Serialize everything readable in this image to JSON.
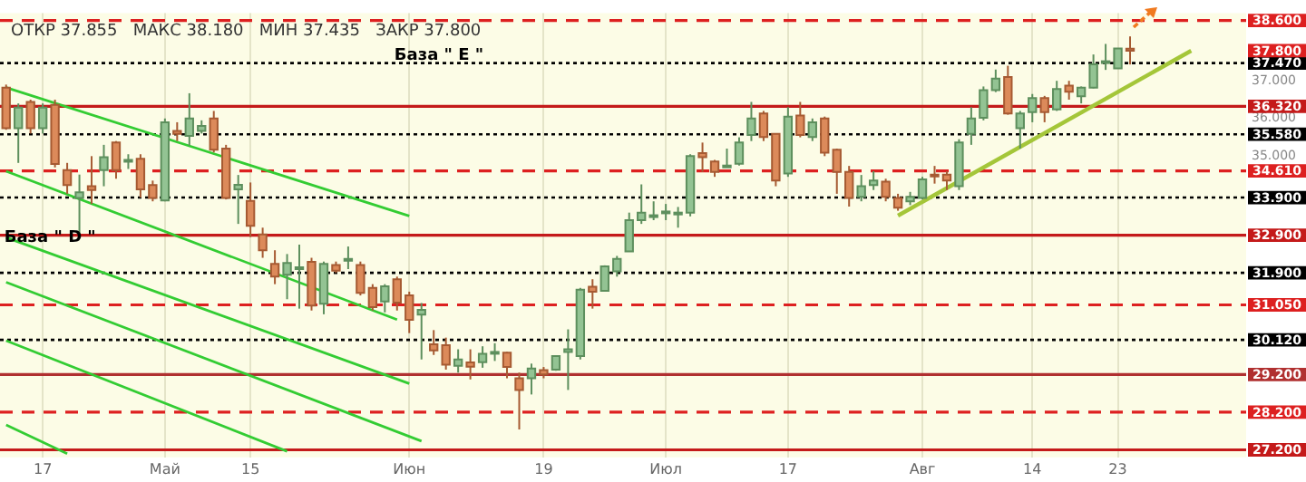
{
  "chart_data": {
    "type": "candlestick",
    "subtitle": "ОТКР 37.855   МАКС 38.180   МИН 37.435   ЗАКР 37.800",
    "categories": [
      null,
      null,
      null,
      "17",
      null,
      null,
      null,
      null,
      null,
      null,
      null,
      null,
      null,
      "Май",
      null,
      null,
      null,
      null,
      null,
      null,
      "15",
      null,
      null,
      null,
      null,
      null,
      null,
      null,
      null,
      null,
      null,
      null,
      null,
      "Июн",
      null,
      null,
      null,
      null,
      null,
      null,
      null,
      null,
      null,
      null,
      "19",
      null,
      null,
      null,
      null,
      null,
      null,
      null,
      null,
      null,
      "Июл",
      null,
      null,
      null,
      null,
      null,
      null,
      null,
      null,
      null,
      "17",
      null,
      null,
      null,
      null,
      null,
      null,
      null,
      null,
      null,
      null,
      "Авг",
      null,
      null,
      null,
      null,
      null,
      null,
      null,
      null,
      "14",
      null,
      null,
      null,
      null,
      null,
      null,
      "23",
      null,
      null,
      null,
      null,
      null,
      null,
      null,
      null,
      null,
      null
    ],
    "ohlc": [
      [
        36.82,
        36.9,
        35.7,
        35.74
      ],
      [
        35.74,
        36.4,
        34.82,
        36.29
      ],
      [
        36.44,
        36.5,
        35.6,
        35.74
      ],
      [
        35.74,
        36.4,
        35.6,
        36.29
      ],
      [
        36.36,
        36.5,
        34.7,
        34.79
      ],
      [
        34.63,
        34.82,
        34.0,
        34.23
      ],
      [
        33.89,
        34.51,
        32.88,
        34.04
      ],
      [
        34.2,
        35.0,
        33.73,
        34.1
      ],
      [
        34.63,
        35.3,
        34.2,
        34.97
      ],
      [
        35.36,
        35.4,
        34.4,
        34.63
      ],
      [
        34.86,
        35.05,
        34.66,
        34.9
      ],
      [
        34.93,
        35.05,
        33.9,
        34.12
      ],
      [
        34.23,
        34.35,
        33.8,
        33.89
      ],
      [
        33.82,
        36.0,
        33.8,
        35.9
      ],
      [
        35.67,
        35.9,
        35.4,
        35.59
      ],
      [
        35.54,
        36.67,
        35.28,
        36.0
      ],
      [
        35.67,
        35.95,
        35.6,
        35.8
      ],
      [
        36.0,
        36.2,
        35.1,
        35.17
      ],
      [
        35.2,
        35.3,
        33.85,
        33.89
      ],
      [
        34.12,
        34.5,
        33.2,
        34.24
      ],
      [
        33.81,
        34.3,
        32.85,
        33.15
      ],
      [
        32.92,
        33.1,
        32.3,
        32.5
      ],
      [
        32.14,
        32.5,
        31.6,
        31.8
      ],
      [
        31.85,
        32.4,
        31.2,
        32.16
      ],
      [
        32.0,
        32.65,
        30.95,
        32.05
      ],
      [
        32.19,
        32.3,
        30.9,
        31.03
      ],
      [
        31.08,
        32.2,
        30.8,
        32.14
      ],
      [
        32.11,
        32.2,
        31.9,
        31.96
      ],
      [
        32.25,
        32.6,
        32.0,
        32.27
      ],
      [
        32.11,
        32.2,
        31.3,
        31.37
      ],
      [
        31.5,
        31.6,
        30.9,
        30.99
      ],
      [
        31.14,
        31.6,
        30.85,
        31.54
      ],
      [
        31.73,
        31.8,
        30.9,
        31.11
      ],
      [
        31.3,
        31.4,
        30.3,
        30.65
      ],
      [
        30.79,
        31.1,
        29.6,
        30.92
      ],
      [
        30.0,
        30.38,
        29.72,
        29.84
      ],
      [
        29.98,
        30.18,
        29.33,
        29.46
      ],
      [
        29.43,
        29.87,
        29.25,
        29.6
      ],
      [
        29.52,
        29.87,
        29.07,
        29.41
      ],
      [
        29.53,
        29.95,
        29.38,
        29.75
      ],
      [
        29.8,
        30.03,
        29.56,
        29.8
      ],
      [
        29.78,
        29.8,
        29.1,
        29.4
      ],
      [
        29.1,
        29.25,
        27.74,
        28.79
      ],
      [
        29.1,
        29.49,
        28.67,
        29.36
      ],
      [
        29.32,
        29.4,
        29.1,
        29.2
      ],
      [
        29.33,
        29.7,
        29.3,
        29.69
      ],
      [
        29.8,
        30.4,
        28.79,
        29.87
      ],
      [
        29.69,
        31.5,
        29.6,
        31.45
      ],
      [
        31.53,
        31.73,
        30.95,
        31.4
      ],
      [
        31.42,
        32.1,
        31.4,
        32.07
      ],
      [
        31.94,
        32.35,
        31.8,
        32.27
      ],
      [
        32.47,
        33.5,
        32.46,
        33.3
      ],
      [
        33.3,
        34.25,
        33.2,
        33.5
      ],
      [
        33.42,
        33.8,
        33.3,
        33.43
      ],
      [
        33.52,
        33.73,
        33.3,
        33.53
      ],
      [
        33.5,
        33.65,
        33.1,
        33.5
      ],
      [
        33.5,
        35.05,
        33.4,
        35.0
      ],
      [
        35.08,
        35.36,
        34.58,
        34.97
      ],
      [
        34.86,
        34.9,
        34.45,
        34.58
      ],
      [
        34.75,
        35.2,
        34.7,
        34.75
      ],
      [
        34.8,
        35.5,
        34.75,
        35.36
      ],
      [
        35.56,
        36.44,
        35.4,
        36.0
      ],
      [
        36.13,
        36.2,
        35.4,
        35.51
      ],
      [
        35.59,
        35.6,
        34.2,
        34.35
      ],
      [
        34.54,
        36.3,
        34.45,
        36.05
      ],
      [
        36.08,
        36.44,
        35.5,
        35.56
      ],
      [
        35.51,
        36.0,
        35.4,
        35.9
      ],
      [
        36.0,
        36.05,
        35.0,
        35.09
      ],
      [
        35.17,
        35.2,
        34.0,
        34.58
      ],
      [
        34.58,
        34.74,
        33.66,
        33.89
      ],
      [
        33.92,
        34.5,
        33.8,
        34.2
      ],
      [
        34.23,
        34.6,
        34.1,
        34.35
      ],
      [
        34.32,
        34.4,
        33.8,
        33.92
      ],
      [
        33.89,
        34.0,
        33.55,
        33.63
      ],
      [
        33.8,
        34.05,
        33.7,
        33.92
      ],
      [
        33.89,
        34.45,
        33.85,
        34.38
      ],
      [
        34.51,
        34.74,
        34.27,
        34.46
      ],
      [
        34.51,
        34.6,
        34.1,
        34.35
      ],
      [
        34.2,
        35.45,
        34.1,
        35.36
      ],
      [
        35.59,
        36.3,
        35.3,
        36.0
      ],
      [
        36.02,
        36.85,
        35.95,
        36.75
      ],
      [
        36.75,
        37.3,
        36.7,
        37.06
      ],
      [
        37.1,
        37.4,
        36.1,
        36.13
      ],
      [
        35.74,
        36.2,
        35.2,
        36.13
      ],
      [
        36.17,
        36.65,
        35.9,
        36.54
      ],
      [
        36.54,
        36.6,
        35.9,
        36.17
      ],
      [
        36.24,
        37.0,
        36.2,
        36.78
      ],
      [
        36.87,
        37.0,
        36.5,
        36.71
      ],
      [
        36.59,
        36.85,
        36.4,
        36.82
      ],
      [
        36.82,
        37.7,
        36.8,
        37.44
      ],
      [
        37.5,
        37.98,
        37.29,
        37.52
      ],
      [
        37.33,
        37.86,
        37.33,
        37.86
      ],
      [
        37.855,
        38.18,
        37.435,
        37.8
      ],
      null,
      null,
      null,
      null,
      null,
      null,
      null,
      null,
      null
    ],
    "series": [
      {
        "type": "line",
        "color": "#33cc33",
        "values": [
          36.82,
          null,
          null,
          null,
          null,
          null,
          null,
          null,
          null,
          null,
          null,
          null,
          null,
          null,
          null,
          null,
          null,
          null,
          null,
          null,
          null,
          null,
          null,
          null,
          null,
          null,
          null,
          null,
          null,
          null,
          null,
          null,
          null,
          33.41,
          null,
          null,
          null,
          null,
          null,
          null,
          null,
          null,
          null,
          null,
          null,
          null,
          null,
          null,
          null,
          null,
          null,
          null,
          null,
          null,
          null,
          null,
          null,
          null,
          null,
          null,
          null,
          null,
          null,
          null,
          null,
          null,
          null,
          null,
          null,
          null,
          null,
          null,
          null,
          null,
          null,
          null,
          null,
          null,
          null,
          null,
          null,
          null,
          null,
          null,
          null,
          null,
          null,
          null,
          null,
          null,
          null,
          null,
          null,
          null,
          null,
          null,
          null,
          null,
          null,
          null,
          null,
          null
        ]
      },
      {
        "type": "line",
        "color": "#33cc33",
        "values": [
          34.6,
          null,
          null,
          null,
          null,
          null,
          null,
          null,
          null,
          null,
          null,
          null,
          null,
          null,
          null,
          null,
          null,
          null,
          null,
          null,
          null,
          null,
          null,
          null,
          null,
          null,
          null,
          null,
          null,
          null,
          null,
          null,
          30.66,
          null,
          null,
          null,
          null,
          null,
          null,
          null,
          null,
          null,
          null,
          null,
          null,
          null,
          null,
          null,
          null,
          null,
          null,
          null,
          null,
          null,
          null,
          null,
          null,
          null,
          null,
          null,
          null,
          null,
          null,
          null,
          null,
          null,
          null,
          null,
          null,
          null,
          null,
          null,
          null,
          null,
          null,
          null,
          null,
          null,
          null,
          null,
          null,
          null,
          null,
          null,
          null,
          null,
          null,
          null,
          null,
          null,
          null,
          null,
          null,
          null,
          null,
          null,
          null,
          null,
          null,
          null,
          null,
          null
        ]
      },
      {
        "type": "line",
        "color": "#33cc33",
        "values": [
          32.84,
          null,
          null,
          null,
          null,
          null,
          null,
          null,
          null,
          null,
          null,
          null,
          null,
          null,
          null,
          null,
          null,
          null,
          null,
          null,
          null,
          null,
          null,
          null,
          null,
          null,
          null,
          null,
          null,
          null,
          null,
          null,
          null,
          28.96,
          null,
          null,
          null,
          null,
          null,
          null,
          null,
          null,
          null,
          null,
          null,
          null,
          null,
          null,
          null,
          null,
          null,
          null,
          null,
          null,
          null,
          null,
          null,
          null,
          null,
          null,
          null,
          null,
          null,
          null,
          null,
          null,
          null,
          null,
          null,
          null,
          null,
          null,
          null,
          null,
          null,
          null,
          null,
          null,
          null,
          null,
          null,
          null,
          null,
          null,
          null,
          null,
          null,
          null,
          null,
          null,
          null,
          null,
          null,
          null,
          null,
          null,
          null,
          null,
          null,
          null,
          null,
          null
        ]
      },
      {
        "type": "line",
        "color": "#33cc33",
        "values": [
          31.65,
          null,
          null,
          null,
          null,
          null,
          null,
          null,
          null,
          null,
          null,
          null,
          null,
          null,
          null,
          null,
          null,
          null,
          null,
          null,
          null,
          null,
          null,
          null,
          null,
          null,
          null,
          null,
          null,
          null,
          null,
          null,
          null,
          null,
          27.43,
          null,
          null,
          null,
          null,
          null,
          null,
          null,
          null,
          null,
          null,
          null,
          null,
          null,
          null,
          null,
          null,
          null,
          null,
          null,
          null,
          null,
          null,
          null,
          null,
          null,
          null,
          null,
          null,
          null,
          null,
          null,
          null,
          null,
          null,
          null,
          null,
          null,
          null,
          null,
          null,
          null,
          null,
          null,
          null,
          null,
          null,
          null,
          null,
          null,
          null,
          null,
          null,
          null,
          null,
          null,
          null,
          null,
          null,
          null,
          null,
          null,
          null,
          null,
          null,
          null,
          null,
          null
        ]
      },
      {
        "type": "line",
        "color": "#33cc33",
        "values": [
          30.1,
          null,
          null,
          null,
          null,
          null,
          null,
          null,
          null,
          null,
          null,
          null,
          null,
          null,
          null,
          null,
          null,
          null,
          null,
          null,
          null,
          null,
          null,
          27.16,
          null,
          null,
          null,
          null,
          null,
          null,
          null,
          null,
          null,
          null,
          null,
          null,
          null,
          null,
          null,
          null,
          null,
          null,
          null,
          null,
          null,
          null,
          null,
          null,
          null,
          null,
          null,
          null,
          null,
          null,
          null,
          null,
          null,
          null,
          null,
          null,
          null,
          null,
          null,
          null,
          null,
          null,
          null,
          null,
          null,
          null,
          null,
          null,
          null,
          null,
          null,
          null,
          null,
          null,
          null,
          null,
          null,
          null,
          null,
          null,
          null,
          null,
          null,
          null,
          null,
          null,
          null,
          null,
          null,
          null,
          null,
          null,
          null,
          null,
          null,
          null,
          null,
          null
        ]
      },
      {
        "type": "line",
        "color": "#33cc33",
        "values": [
          27.86,
          null,
          null,
          null,
          null,
          27.1,
          null,
          null,
          null,
          null,
          null,
          null,
          null,
          null,
          null,
          null,
          null,
          null,
          null,
          null,
          null,
          null,
          null,
          null,
          null,
          null,
          null,
          null,
          null,
          null,
          null,
          null,
          null,
          null,
          null,
          null,
          null,
          null,
          null,
          null,
          null,
          null,
          null,
          null,
          null,
          null,
          null,
          null,
          null,
          null,
          null,
          null,
          null,
          null,
          null,
          null,
          null,
          null,
          null,
          null,
          null,
          null,
          null,
          null,
          null,
          null,
          null,
          null,
          null,
          null,
          null,
          null,
          null,
          null,
          null,
          null,
          null,
          null,
          null,
          null,
          null,
          null,
          null,
          null,
          null,
          null,
          null,
          null,
          null,
          null,
          null,
          null,
          null,
          null,
          null,
          null,
          null,
          null,
          null,
          null,
          null,
          null
        ]
      },
      {
        "type": "line",
        "color": "#a4c639",
        "values": [
          null,
          null,
          null,
          null,
          null,
          null,
          null,
          null,
          null,
          null,
          null,
          null,
          null,
          null,
          null,
          null,
          null,
          null,
          null,
          null,
          null,
          null,
          null,
          null,
          null,
          null,
          null,
          null,
          null,
          null,
          null,
          null,
          null,
          null,
          null,
          null,
          null,
          null,
          null,
          null,
          null,
          null,
          null,
          null,
          null,
          null,
          null,
          null,
          null,
          null,
          null,
          null,
          null,
          null,
          null,
          null,
          null,
          null,
          null,
          null,
          null,
          null,
          null,
          null,
          null,
          null,
          null,
          null,
          null,
          null,
          null,
          null,
          null,
          33.42,
          null,
          null,
          null,
          null,
          null,
          null,
          null,
          null,
          null,
          null,
          null,
          null,
          null,
          null,
          null,
          null,
          null,
          null,
          null,
          null,
          null,
          null,
          null,
          37.8,
          null,
          null,
          null,
          null
        ]
      }
    ],
    "ylim": [
      27.0,
      38.8
    ],
    "yticks": [
      {
        "value": 35,
        "label": "35.000"
      },
      {
        "value": 36,
        "label": "36.000"
      },
      {
        "value": 37,
        "label": "37.000"
      }
    ],
    "grid": "x",
    "marker": "none",
    "line_style": "solid",
    "ref_lines": [
      {
        "axis": "y",
        "value": 38.6,
        "label": "38.600",
        "color": "#dd2020",
        "line_style": "dashed"
      },
      {
        "axis": "y",
        "value": 37.47,
        "label": "37.470",
        "color": "#000000",
        "line_style": "dotted"
      },
      {
        "axis": "y",
        "value": 36.32,
        "label": "36.320",
        "color": "#c41a1a",
        "line_style": "solid"
      },
      {
        "axis": "y",
        "value": 35.58,
        "label": "35.580",
        "color": "#000000",
        "line_style": "dotted"
      },
      {
        "axis": "y",
        "value": 34.61,
        "label": "34.610",
        "color": "#dd2020",
        "line_style": "dashed"
      },
      {
        "axis": "y",
        "value": 33.9,
        "label": "33.900",
        "color": "#000000",
        "line_style": "dotted"
      },
      {
        "axis": "y",
        "value": 32.9,
        "label": "32.900",
        "color": "#c41a1a",
        "line_style": "solid"
      },
      {
        "axis": "y",
        "value": 31.9,
        "label": "31.900",
        "color": "#000000",
        "line_style": "dotted"
      },
      {
        "axis": "y",
        "value": 31.05,
        "label": "31.050",
        "color": "#dd2020",
        "line_style": "dashed"
      },
      {
        "axis": "y",
        "value": 30.12,
        "label": "30.120",
        "color": "#000000",
        "line_style": "dotted"
      },
      {
        "axis": "y",
        "value": 29.2,
        "label": "29.200",
        "color": "#b03030",
        "line_style": "solid"
      },
      {
        "axis": "y",
        "value": 28.2,
        "label": "28.200",
        "color": "#dd2020",
        "line_style": "dashed"
      },
      {
        "axis": "y",
        "value": 27.2,
        "label": "27.200",
        "color": "#c41a1a",
        "line_style": "solid"
      }
    ],
    "annotations": [
      "База \" E \"",
      "База \" D \"",
      "37.800"
    ]
  }
}
